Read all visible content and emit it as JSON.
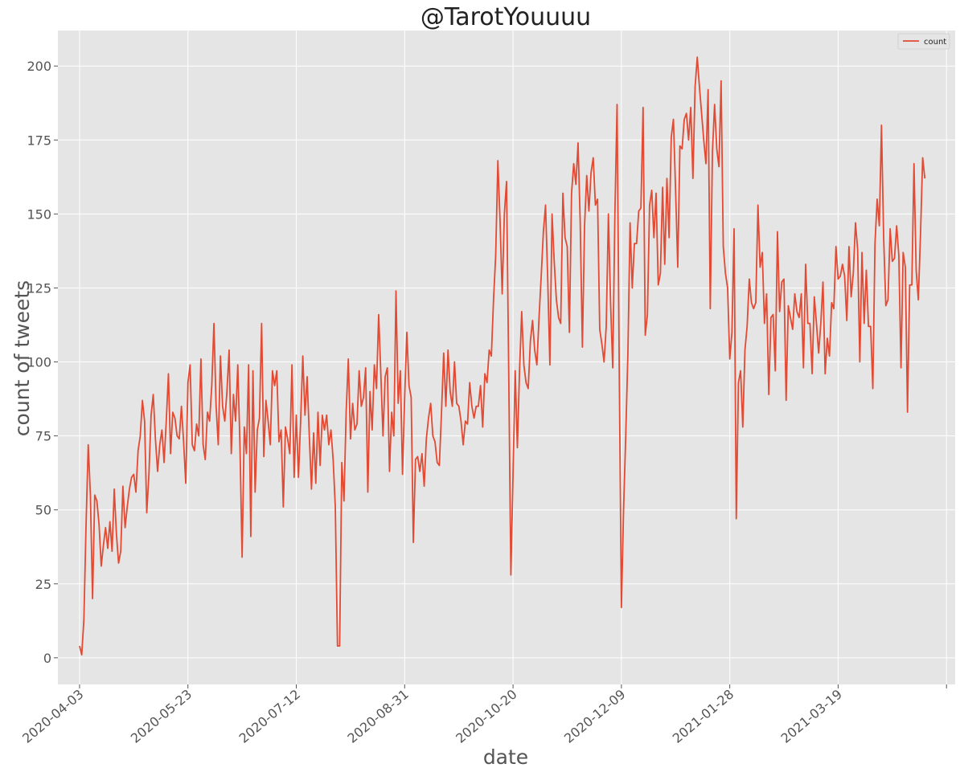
{
  "chart_data": {
    "type": "line",
    "title": "@TarotYouuuu",
    "xlabel": "date",
    "ylabel": "count of tweets",
    "x_start": "2020-04-03",
    "x_end": "2021-04-30",
    "xlim": [
      "2020-03-24",
      "2021-05-12"
    ],
    "ylim": [
      -9,
      212
    ],
    "yticks": [
      0,
      25,
      50,
      75,
      100,
      125,
      150,
      175,
      200
    ],
    "xticks": [
      "2020-04-03",
      "2020-05-23",
      "2020-07-12",
      "2020-08-31",
      "2020-10-20",
      "2020-12-09",
      "2021-01-28",
      "2021-03-19",
      "2021-05-08"
    ],
    "xtick_labels": [
      "2020-04-03",
      "2020-05-23",
      "2020-07-12",
      "2020-08-31",
      "2020-10-20",
      "2020-12-09",
      "2021-01-28",
      "2021-03-19",
      ""
    ],
    "grid": true,
    "legend_position": "top-right",
    "colors": {
      "line": "#E24A33",
      "background": "#E5E5E5",
      "grid": "#FFFFFF",
      "text": "#555555"
    },
    "series": [
      {
        "name": "count",
        "values": [
          4,
          1,
          13,
          45,
          72,
          55,
          20,
          55,
          53,
          45,
          31,
          38,
          44,
          37,
          46,
          36,
          57,
          42,
          32,
          36,
          58,
          44,
          51,
          57,
          61,
          62,
          56,
          70,
          75,
          87,
          80,
          49,
          62,
          82,
          89,
          74,
          63,
          72,
          77,
          66,
          80,
          96,
          69,
          83,
          81,
          75,
          74,
          85,
          73,
          59,
          93,
          99,
          72,
          70,
          79,
          75,
          101,
          72,
          67,
          83,
          80,
          92,
          113,
          85,
          72,
          102,
          85,
          80,
          90,
          104,
          69,
          89,
          80,
          99,
          72,
          34,
          78,
          69,
          99,
          41,
          97,
          56,
          77,
          81,
          113,
          68,
          87,
          80,
          72,
          97,
          92,
          97,
          73,
          77,
          51,
          78,
          74,
          69,
          99,
          61,
          82,
          61,
          80,
          102,
          82,
          95,
          75,
          57,
          76,
          59,
          83,
          65,
          82,
          77,
          82,
          72,
          77,
          67,
          51,
          4,
          4,
          66,
          53,
          83,
          101,
          74,
          86,
          77,
          79,
          97,
          85,
          88,
          98,
          56,
          90,
          77,
          99,
          91,
          116,
          96,
          75,
          95,
          98,
          63,
          83,
          75,
          124,
          86,
          97,
          62,
          88,
          110,
          92,
          88,
          39,
          67,
          68,
          63,
          69,
          58,
          74,
          81,
          86,
          75,
          73,
          66,
          65,
          83,
          103,
          85,
          104,
          90,
          85,
          100,
          86,
          85,
          80,
          72,
          80,
          79,
          93,
          85,
          81,
          85,
          85,
          92,
          78,
          96,
          93,
          104,
          102,
          121,
          136,
          168,
          148,
          123,
          150,
          161,
          97,
          28,
          62,
          97,
          71,
          97,
          117,
          99,
          93,
          91,
          107,
          114,
          104,
          99,
          115,
          129,
          144,
          153,
          128,
          99,
          150,
          134,
          121,
          115,
          113,
          157,
          142,
          139,
          110,
          157,
          167,
          160,
          174,
          147,
          105,
          146,
          163,
          151,
          164,
          169,
          153,
          155,
          111,
          106,
          100,
          112,
          150,
          120,
          98,
          150,
          187,
          98,
          17,
          50,
          75,
          103,
          147,
          125,
          140,
          140,
          151,
          152,
          186,
          109,
          116,
          153,
          158,
          142,
          157,
          126,
          130,
          159,
          133,
          162,
          142,
          176,
          182,
          158,
          132,
          173,
          172,
          182,
          184,
          175,
          186,
          162,
          193,
          203,
          193,
          184,
          175,
          167,
          192,
          118,
          171,
          187,
          172,
          166,
          195,
          139,
          130,
          125,
          101,
          110,
          145,
          47,
          93,
          97,
          78,
          104,
          112,
          128,
          120,
          118,
          120,
          153,
          132,
          137,
          113,
          123,
          89,
          115,
          116,
          97,
          144,
          117,
          127,
          128,
          87,
          119,
          115,
          111,
          123,
          117,
          115,
          123,
          98,
          133,
          113,
          113,
          96,
          122,
          113,
          103,
          113,
          127,
          96,
          108,
          102,
          120,
          118,
          139,
          128,
          129,
          133,
          129,
          114,
          139,
          122,
          130,
          147,
          138,
          100,
          137,
          113,
          131,
          112,
          112,
          91,
          140,
          155,
          146,
          180,
          142,
          119,
          121,
          145,
          134,
          135,
          146,
          136,
          98,
          137,
          132,
          83,
          126,
          126,
          167,
          131,
          121,
          143,
          169,
          162
        ]
      }
    ]
  }
}
